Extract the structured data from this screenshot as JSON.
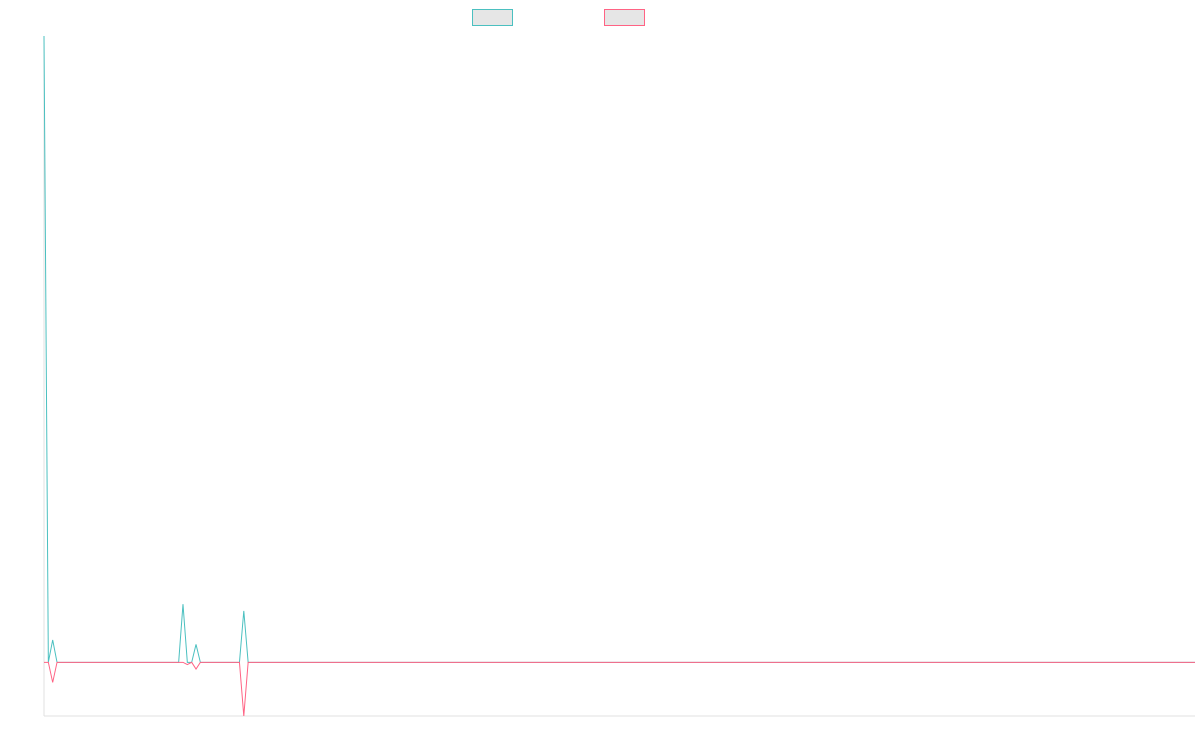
{
  "chart_data": {
    "type": "line",
    "title": "",
    "xlabel": "",
    "ylabel": "",
    "grid": false,
    "legend_position": "top-center",
    "x_count": 266,
    "ylim": [
      -120,
      1400
    ],
    "series": [
      {
        "color": "#4bc0c0",
        "legend_fill": "#e6e6e6",
        "points": [
          [
            0,
            1400
          ],
          [
            1,
            0
          ],
          [
            2,
            50
          ],
          [
            3,
            0
          ],
          [
            31,
            0
          ],
          [
            32,
            130
          ],
          [
            33,
            0
          ],
          [
            34,
            0
          ],
          [
            35,
            40
          ],
          [
            36,
            0
          ],
          [
            45,
            0
          ],
          [
            46,
            115
          ],
          [
            47,
            0
          ]
        ]
      },
      {
        "color": "#ff6384",
        "legend_fill": "#e6e6e6",
        "points": [
          [
            0,
            0
          ],
          [
            1,
            0
          ],
          [
            2,
            -45
          ],
          [
            3,
            0
          ],
          [
            31,
            0
          ],
          [
            32,
            0
          ],
          [
            33,
            -5
          ],
          [
            34,
            0
          ],
          [
            35,
            -15
          ],
          [
            36,
            0
          ],
          [
            45,
            0
          ],
          [
            46,
            -120
          ],
          [
            47,
            0
          ]
        ]
      }
    ]
  }
}
